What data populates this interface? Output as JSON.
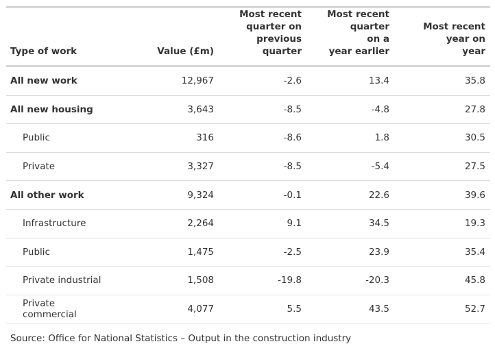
{
  "table": {
    "headers": [
      {
        "lines": [
          "Type of work"
        ]
      },
      {
        "lines": [
          "Value (£m)"
        ]
      },
      {
        "lines": [
          "Most recent",
          "quarter on",
          "previous",
          "quarter"
        ]
      },
      {
        "lines": [
          "Most recent",
          "quarter",
          "on a",
          "year earlier"
        ]
      },
      {
        "lines": [
          "Most recent",
          "year on",
          "year"
        ]
      }
    ],
    "rows": [
      {
        "style": "bold",
        "cells": [
          "All new work",
          "12,967",
          "-2.6",
          "13.4",
          "35.8"
        ]
      },
      {
        "style": "bold",
        "cells": [
          "All new housing",
          "3,643",
          "-8.5",
          "-4.8",
          "27.8"
        ]
      },
      {
        "style": "indent",
        "cells": [
          "Public",
          "316",
          "-8.6",
          "1.8",
          "30.5"
        ]
      },
      {
        "style": "indent",
        "cells": [
          "Private",
          "3,327",
          "-8.5",
          "-5.4",
          "27.5"
        ]
      },
      {
        "style": "bold",
        "cells": [
          "All other work",
          "9,324",
          "-0.1",
          "22.6",
          "39.6"
        ]
      },
      {
        "style": "indent",
        "cells": [
          "Infrastructure",
          "2,264",
          "9.1",
          "34.5",
          "19.3"
        ]
      },
      {
        "style": "indent",
        "cells": [
          "Public",
          "1,475",
          "-2.5",
          "23.9",
          "35.4"
        ]
      },
      {
        "style": "indent",
        "cells": [
          "Private industrial",
          "1,508",
          "-19.8",
          "-20.3",
          "45.8"
        ]
      },
      {
        "style": "indent",
        "cells": [
          "Private commercial",
          "4,077",
          "5.5",
          "43.5",
          "52.7"
        ]
      }
    ]
  },
  "source": "Source: Office for National Statistics – Output in the construction industry"
}
